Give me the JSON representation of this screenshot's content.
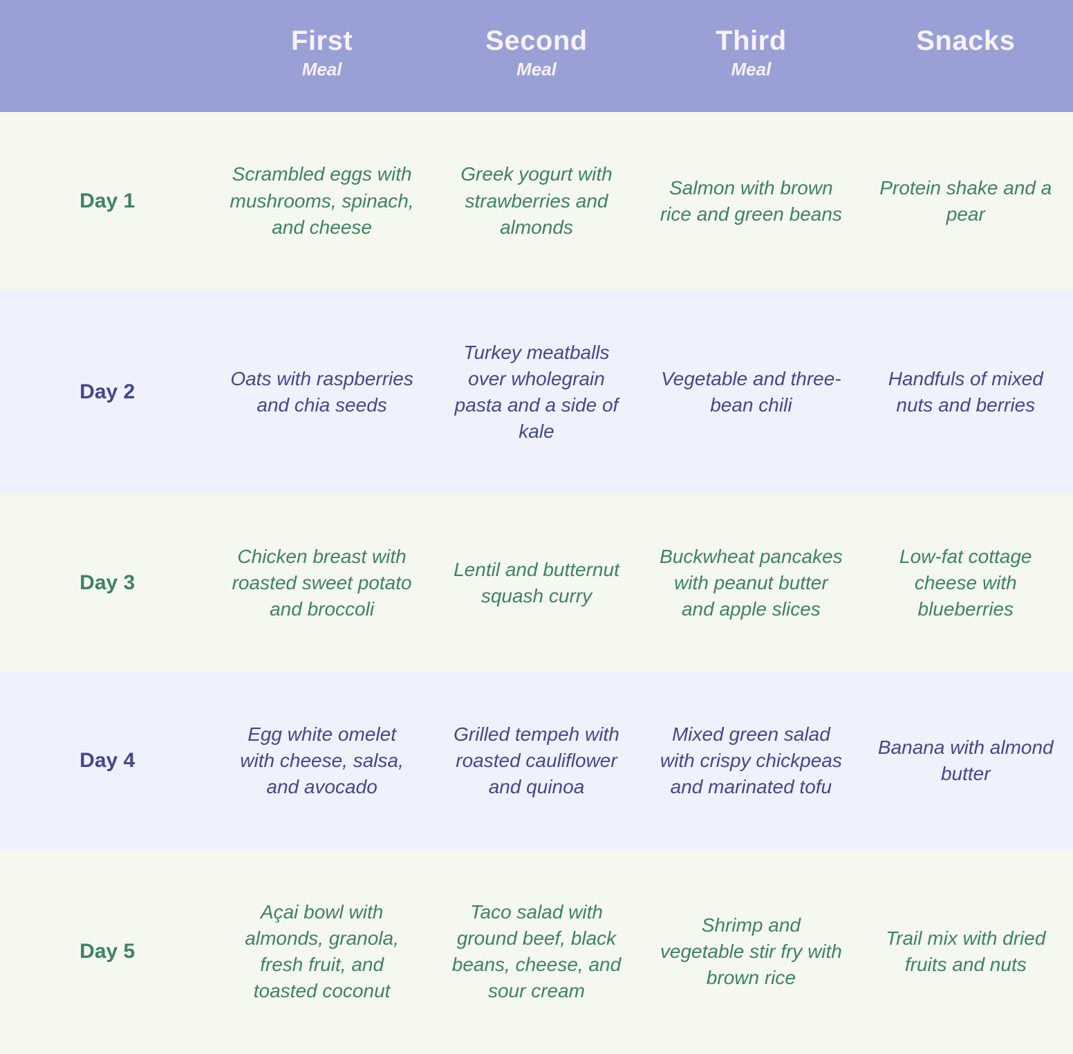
{
  "header": {
    "columns": [
      {
        "title": "First",
        "subtitle": "Meal"
      },
      {
        "title": "Second",
        "subtitle": "Meal"
      },
      {
        "title": "Third",
        "subtitle": "Meal"
      },
      {
        "title": "Snacks",
        "subtitle": ""
      }
    ]
  },
  "rows": [
    {
      "day": "Day 1",
      "meals": [
        "Scrambled eggs with mushrooms, spinach, and cheese",
        "Greek yogurt with strawberries and almonds",
        "Salmon with brown rice and green beans",
        "Protein shake and a pear"
      ]
    },
    {
      "day": "Day 2",
      "meals": [
        "Oats with raspberries and chia seeds",
        "Turkey meatballs over wholegrain pasta and a side of kale",
        "Vegetable and three-bean chili",
        "Handfuls of mixed nuts and berries"
      ]
    },
    {
      "day": "Day 3",
      "meals": [
        "Chicken breast with roasted sweet potato and broccoli",
        "Lentil and butternut squash curry",
        "Buckwheat pancakes with peanut butter and apple slices",
        "Low-fat cottage cheese with blueberries"
      ]
    },
    {
      "day": "Day 4",
      "meals": [
        "Egg white omelet with cheese, salsa, and avocado",
        "Grilled tempeh with roasted cauliflower and quinoa",
        "Mixed green salad with crispy chickpeas and marinated tofu",
        "Banana with almond butter"
      ]
    },
    {
      "day": "Day 5",
      "meals": [
        "Açai bowl with almonds, granola, fresh fruit, and toasted coconut",
        "Taco salad with ground beef, black beans, cheese, and sour cream",
        "Shrimp and vegetable stir fry with brown rice",
        "Trail mix with dried fruits and nuts"
      ]
    }
  ],
  "colors": {
    "header_bg": "#99a0d6",
    "header_text": "#f8f1f6",
    "row_cream_bg": "#f5f8ee",
    "row_lavender_bg": "#eff1fd",
    "text_green": "#3e8168",
    "text_navy": "#43478e"
  }
}
